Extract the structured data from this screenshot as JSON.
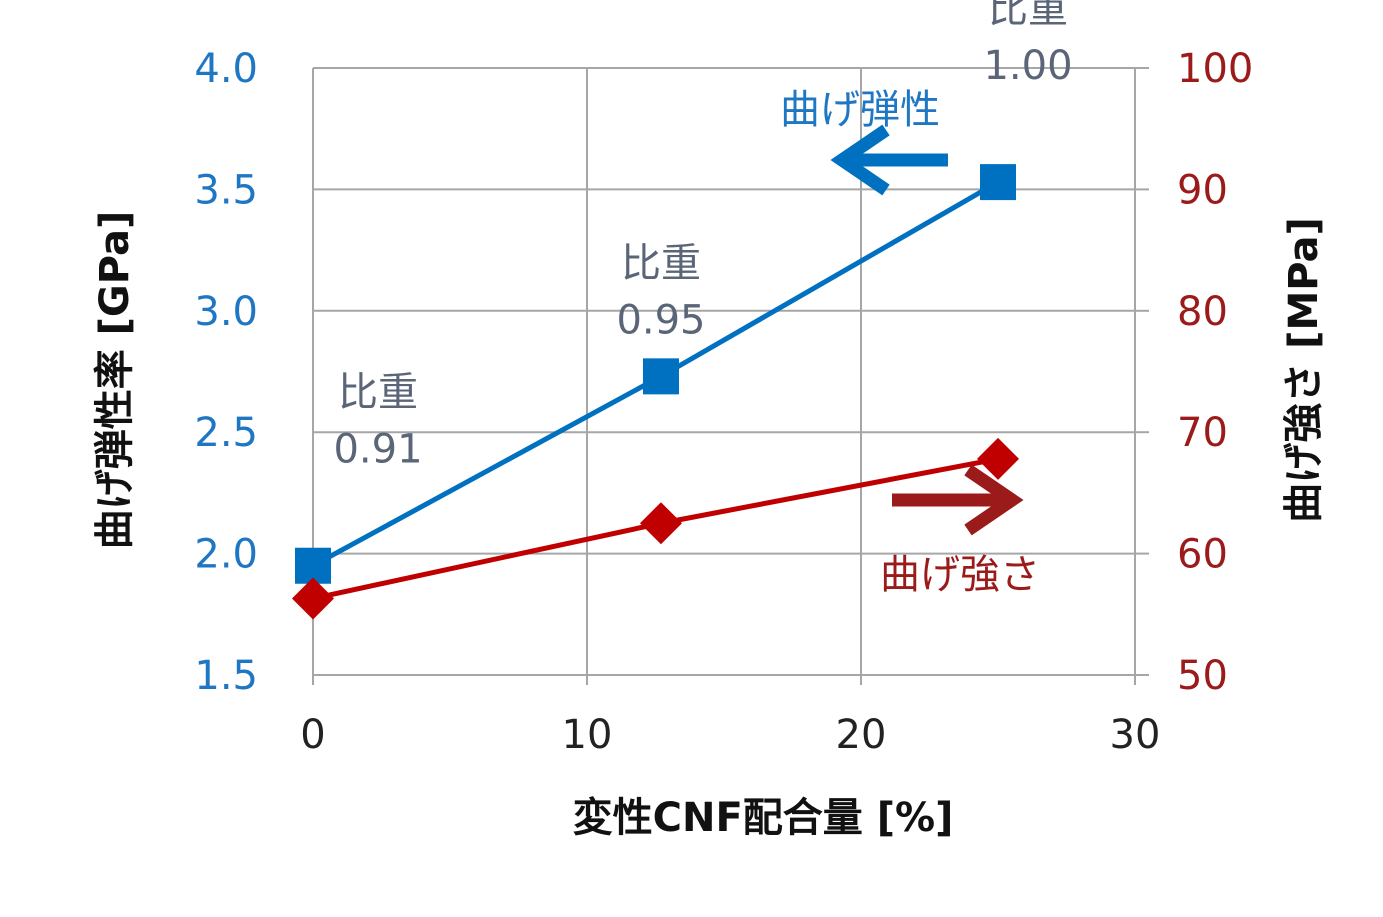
{
  "chart_data": {
    "type": "line",
    "xlabel": "変性CNF配合量 [%]",
    "ylabel_left": "曲げ弾性率 [GPa]",
    "ylabel_right": "曲げ強さ [MPa]",
    "xlim": [
      0,
      30
    ],
    "ylim_left": [
      1.5,
      4.0
    ],
    "ylim_right": [
      50,
      100
    ],
    "x_ticks": [
      "0",
      "10",
      "20",
      "30"
    ],
    "y_left_ticks": [
      "1.5",
      "2.0",
      "2.5",
      "3.0",
      "3.5",
      "4.0"
    ],
    "y_right_ticks": [
      "50",
      "60",
      "70",
      "80",
      "90",
      "100"
    ],
    "grid": true,
    "series": [
      {
        "name": "曲げ弾性",
        "axis": "left",
        "marker": "square",
        "color": "#0070c0",
        "x": [
          0,
          12.7,
          25
        ],
        "y": [
          1.95,
          2.73,
          3.53
        ]
      },
      {
        "name": "曲げ強さ",
        "axis": "right",
        "marker": "diamond",
        "color": "#c00000",
        "x": [
          0,
          12.7,
          25
        ],
        "y": [
          56.3,
          62.5,
          67.8
        ]
      }
    ],
    "annotations": [
      {
        "line1": "比重",
        "line2": "0.91",
        "x": 0,
        "series": 0
      },
      {
        "line1": "比重",
        "line2": "0.95",
        "x": 12.7,
        "series": 0
      },
      {
        "line1": "比重",
        "line2": "1.00",
        "x": 25,
        "series": 0
      }
    ],
    "arrow_labels": {
      "left": "曲げ弾性",
      "right": "曲げ強さ",
      "left_color": "#0070c0",
      "right_color": "#9b1b1b"
    }
  }
}
